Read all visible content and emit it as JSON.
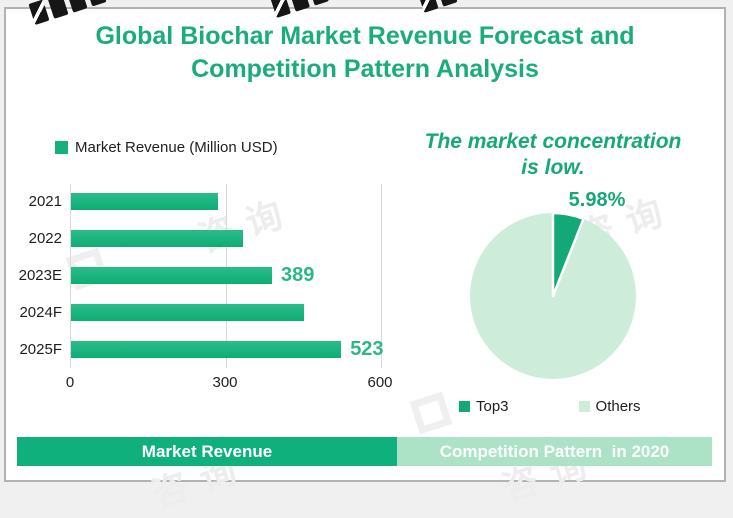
{
  "page": {
    "title_line1": "Global Biochar Market Revenue Forecast and",
    "title_line2": "Competition Pattern Analysis"
  },
  "colors": {
    "title_green": "#1bac7b",
    "bar_green": "#14b17d",
    "slice_green": "#12a877",
    "light_green": "#cdedda",
    "banner_left_bg": "#10b07c",
    "banner_right_bg": "#ace3c6",
    "value_label_green": "#2bb787",
    "headline_green": "#16a878",
    "grid_gray": "#d9d9d9"
  },
  "bar_section": {
    "legend_label": "Market Revenue (Million USD)"
  },
  "pie_section": {
    "headline_line1": "The market concentration",
    "headline_line2": "is low.",
    "slice_label": "5.98%",
    "legend": [
      {
        "label": "Top3"
      },
      {
        "label": "Others"
      }
    ]
  },
  "footer": {
    "left_tab": "Market Revenue",
    "right_tab": "Competition Pattern  in 2020"
  },
  "watermark": {
    "faint_text": "咨询"
  },
  "chart_data": [
    {
      "type": "bar",
      "orientation": "horizontal",
      "title": "Market Revenue",
      "legend": [
        "Market Revenue (Million USD)"
      ],
      "categories": [
        "2021",
        "2022",
        "2023E",
        "2024F",
        "2025F"
      ],
      "values": [
        284,
        332,
        389,
        450,
        523
      ],
      "data_labels": [
        "",
        "",
        "389",
        "",
        "523"
      ],
      "xlabel": "",
      "ylabel": "",
      "xlim": [
        0,
        600
      ],
      "x_ticks": [
        "0",
        "300",
        "600"
      ],
      "x_tick_values": [
        0,
        300,
        600
      ],
      "grid": true,
      "legend_position": "top-left"
    },
    {
      "type": "pie",
      "title": "The market concentration is low.",
      "labels": [
        "Top3",
        "Others"
      ],
      "values": [
        5.98,
        94.02
      ],
      "data_labels": [
        "5.98%",
        ""
      ],
      "legend_position": "bottom"
    }
  ]
}
